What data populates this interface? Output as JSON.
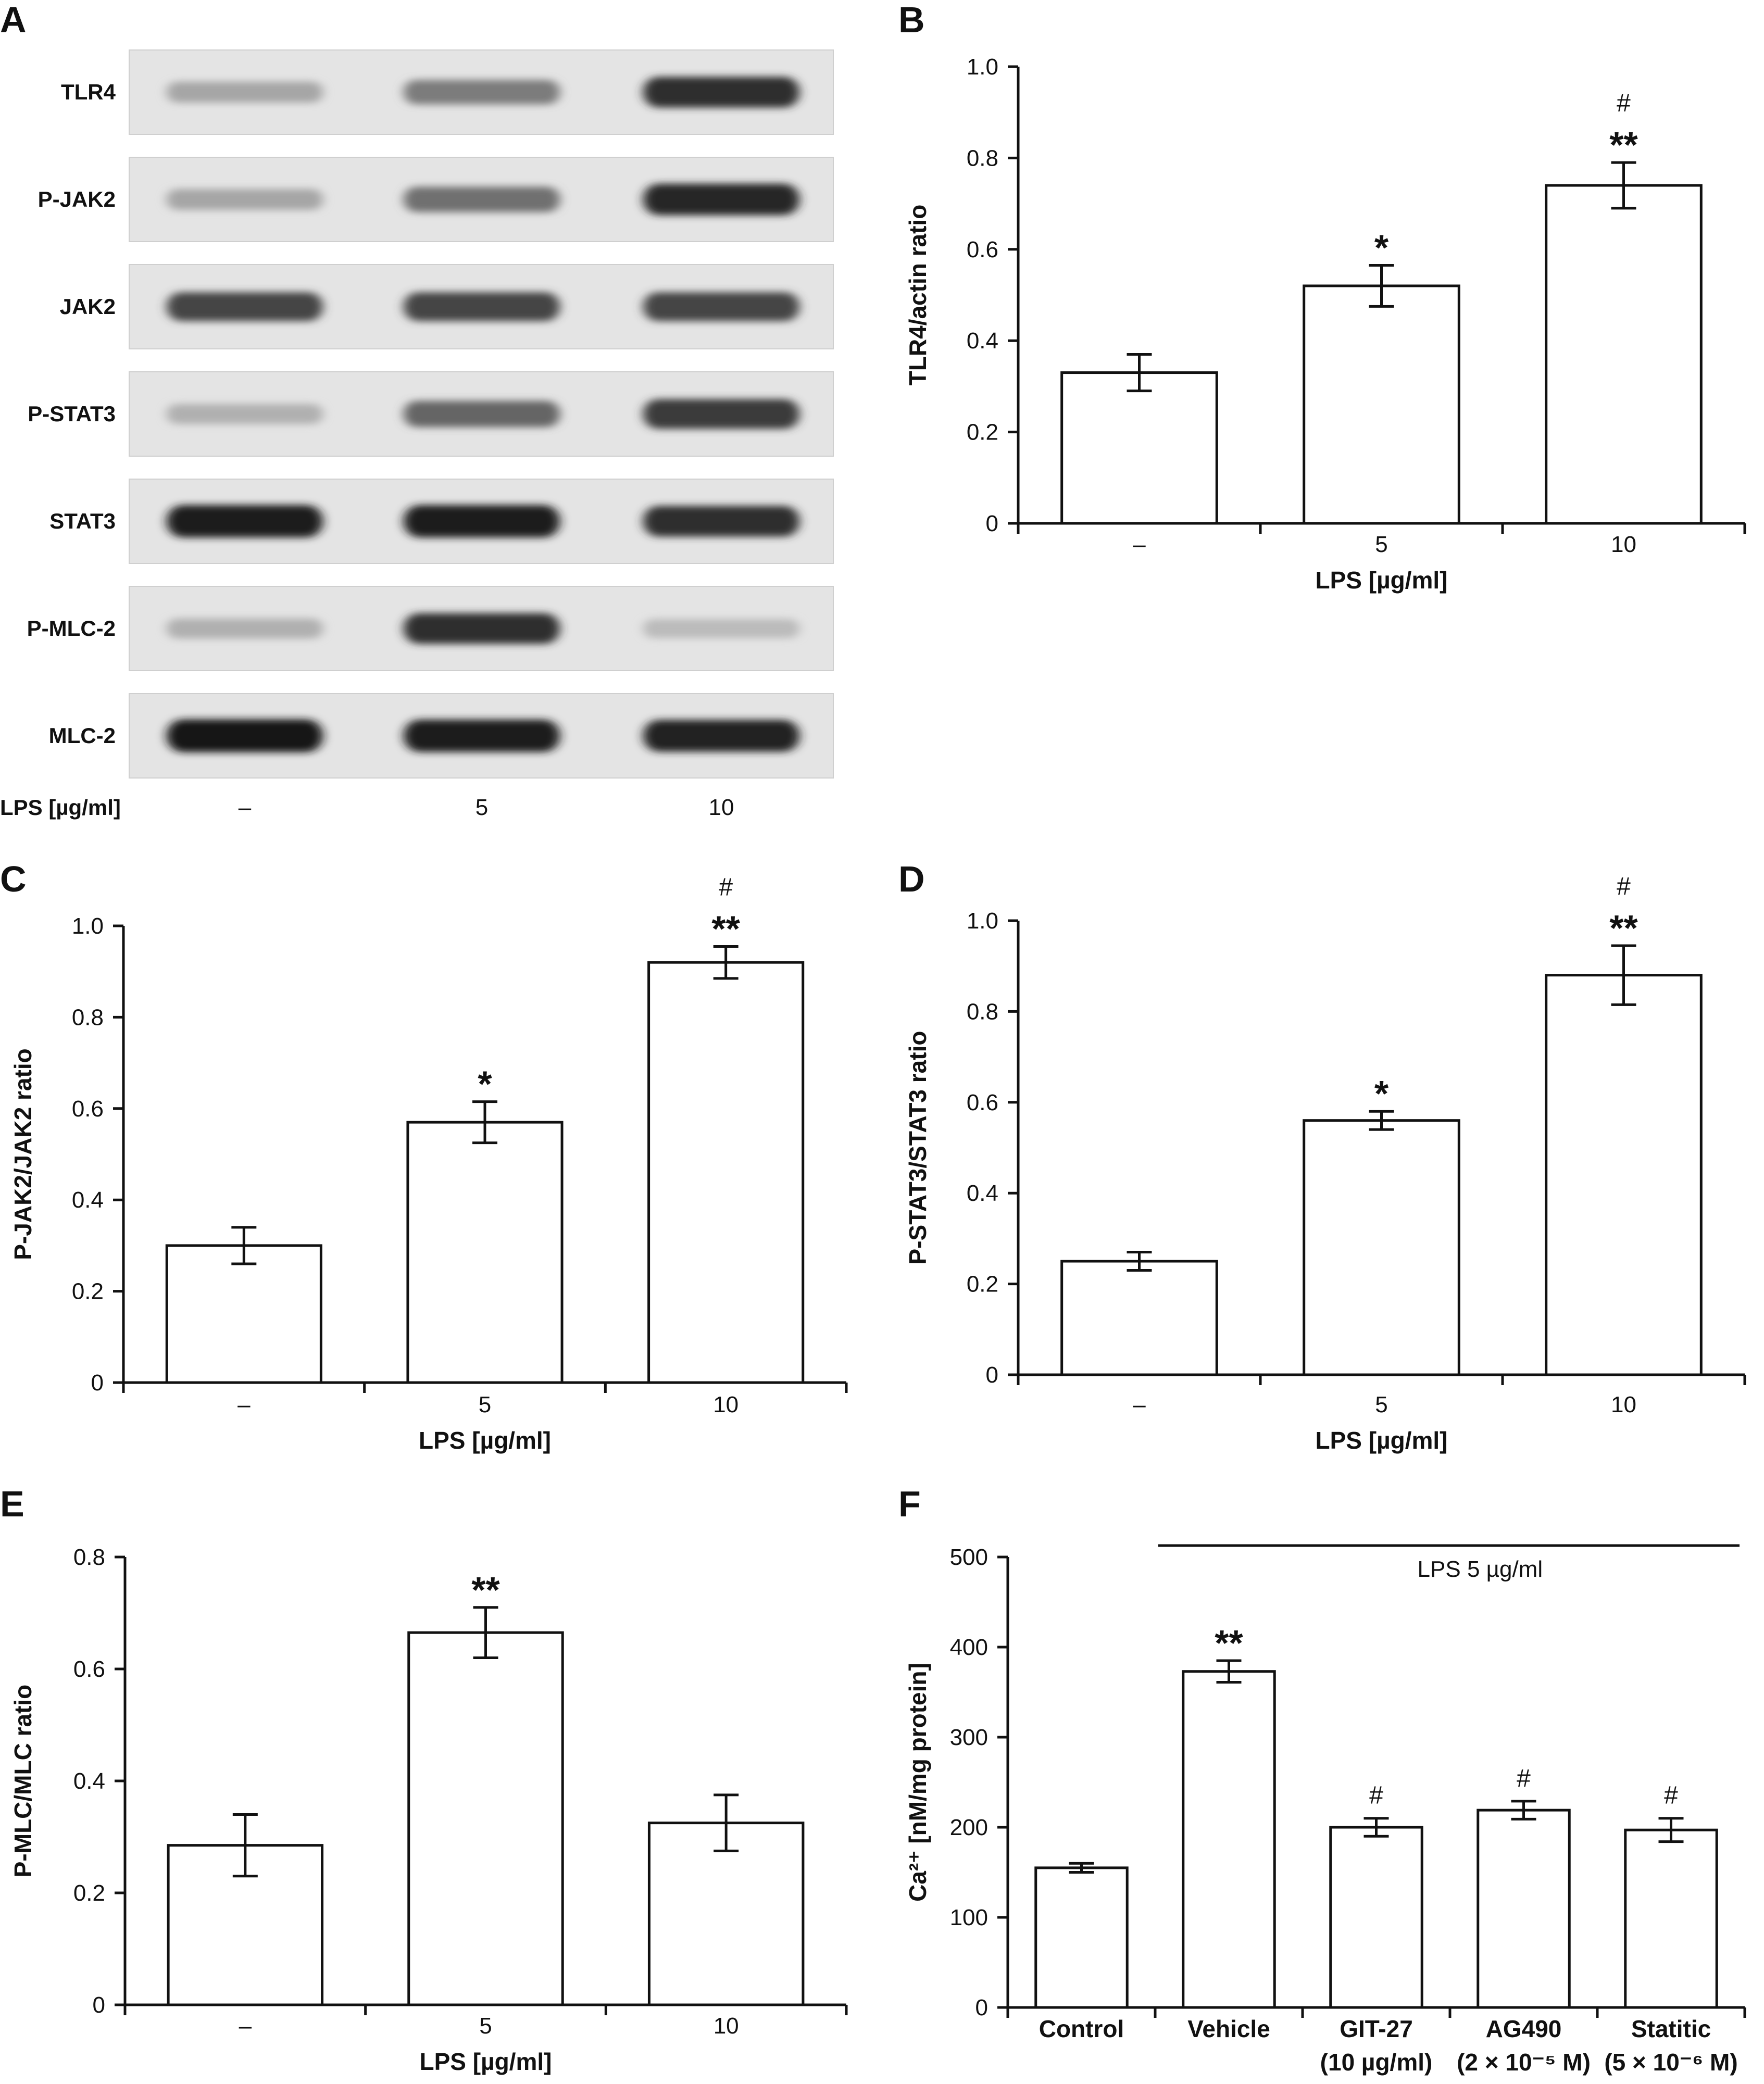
{
  "panels": {
    "A": {
      "letter": "A",
      "rows": [
        "TLR4",
        "P-JAK2",
        "JAK2",
        "P-STAT3",
        "STAT3",
        "P-MLC-2",
        "MLC-2"
      ],
      "xlabel": "LPS [µg/ml]",
      "lanes": [
        "–",
        "5",
        "10"
      ],
      "intensity": [
        [
          0.3,
          0.5,
          0.85
        ],
        [
          0.3,
          0.55,
          0.9
        ],
        [
          0.75,
          0.75,
          0.75
        ],
        [
          0.25,
          0.6,
          0.8
        ],
        [
          0.95,
          0.95,
          0.85
        ],
        [
          0.25,
          0.85,
          0.2
        ],
        [
          0.98,
          0.95,
          0.92
        ]
      ]
    }
  },
  "chart_data": [
    {
      "id": "B",
      "letter": "B",
      "type": "bar",
      "categories": [
        "–",
        "5",
        "10"
      ],
      "values": [
        0.33,
        0.52,
        0.74
      ],
      "errors": [
        0.04,
        0.045,
        0.05
      ],
      "significance": [
        "",
        "*",
        "**"
      ],
      "hash": [
        "",
        "",
        "#"
      ],
      "xlabel": "LPS [µg/ml]",
      "ylabel": "TLR4/actin ratio",
      "ylim": [
        0,
        1.0
      ],
      "yticks": [
        "0",
        "0.2",
        "0.4",
        "0.6",
        "0.8",
        "1.0"
      ]
    },
    {
      "id": "C",
      "letter": "C",
      "type": "bar",
      "categories": [
        "–",
        "5",
        "10"
      ],
      "values": [
        0.3,
        0.57,
        0.92
      ],
      "errors": [
        0.04,
        0.045,
        0.035
      ],
      "significance": [
        "",
        "*",
        "**"
      ],
      "hash": [
        "",
        "",
        "#"
      ],
      "xlabel": "LPS [µg/ml]",
      "ylabel": "P-JAK2/JAK2 ratio",
      "ylim": [
        0,
        1.0
      ],
      "yticks": [
        "0",
        "0.2",
        "0.4",
        "0.6",
        "0.8",
        "1.0"
      ]
    },
    {
      "id": "D",
      "letter": "D",
      "type": "bar",
      "categories": [
        "–",
        "5",
        "10"
      ],
      "values": [
        0.25,
        0.56,
        0.88
      ],
      "errors": [
        0.02,
        0.02,
        0.065
      ],
      "significance": [
        "",
        "*",
        "**"
      ],
      "hash": [
        "",
        "",
        "#"
      ],
      "xlabel": "LPS [µg/ml]",
      "ylabel": "P-STAT3/STAT3 ratio",
      "ylim": [
        0,
        1.0
      ],
      "yticks": [
        "0",
        "0.2",
        "0.4",
        "0.6",
        "0.8",
        "1.0"
      ]
    },
    {
      "id": "E",
      "letter": "E",
      "type": "bar",
      "categories": [
        "–",
        "5",
        "10"
      ],
      "values": [
        0.285,
        0.665,
        0.325
      ],
      "errors": [
        0.055,
        0.045,
        0.05
      ],
      "significance": [
        "",
        "**",
        ""
      ],
      "hash": [
        "",
        "",
        ""
      ],
      "xlabel": "LPS [µg/ml]",
      "ylabel": "P-MLC/MLC ratio",
      "ylim": [
        0,
        0.8
      ],
      "yticks": [
        "0",
        "0.2",
        "0.4",
        "0.6",
        "0.8"
      ]
    },
    {
      "id": "F",
      "letter": "F",
      "type": "bar",
      "categories": [
        "Control",
        "Vehicle",
        "GIT-27",
        "AG490",
        "Statitic"
      ],
      "sublabels": [
        "",
        "",
        "(10 µg/ml)",
        "(2 × 10⁻⁵ M)",
        "(5 × 10⁻⁶ M)"
      ],
      "values": [
        155,
        373,
        200,
        219,
        197
      ],
      "errors": [
        5,
        12,
        10,
        10,
        13
      ],
      "significance": [
        "",
        "**",
        "",
        "",
        ""
      ],
      "hash": [
        "",
        "",
        "#",
        "#",
        "#"
      ],
      "xlabel": "",
      "ylabel": "Ca²⁺ [nM/mg protein]",
      "ylim": [
        0,
        500
      ],
      "yticks": [
        "0",
        "100",
        "200",
        "300",
        "400",
        "500"
      ],
      "annotation": "LPS 5 µg/ml"
    }
  ]
}
